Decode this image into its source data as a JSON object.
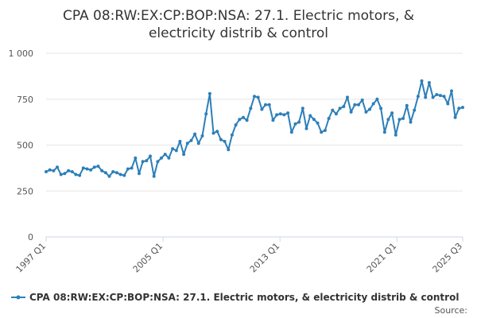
{
  "chart_data": {
    "type": "line",
    "title_lines": [
      "CPA 08:RW:EX:CP:BOP:NSA: 27.1. Electric motors, &",
      "electricity distrib & control"
    ],
    "x_tick_labels": [
      "1997 Q1",
      "2005 Q1",
      "2013 Q1",
      "2021 Q1",
      "2025 Q3"
    ],
    "y_tick_labels": [
      "0",
      "250",
      "500",
      "750",
      "1 000"
    ],
    "ylim": [
      0,
      1000
    ],
    "x_start": "1997 Q1",
    "x_end": "2025 Q3",
    "grid": "horizontal",
    "legend_position": "bottom",
    "color": "#2d7fb8",
    "series": [
      {
        "name": "CPA 08:RW:EX:CP:BOP:NSA: 27.1. Electric motors, & electricity distrib & control",
        "values": [
          355,
          365,
          360,
          380,
          340,
          345,
          360,
          355,
          340,
          335,
          375,
          370,
          365,
          380,
          385,
          360,
          350,
          330,
          355,
          350,
          340,
          335,
          370,
          375,
          430,
          345,
          410,
          415,
          440,
          330,
          410,
          430,
          450,
          430,
          480,
          470,
          520,
          450,
          510,
          525,
          560,
          510,
          550,
          670,
          780,
          565,
          575,
          530,
          520,
          475,
          555,
          610,
          640,
          650,
          635,
          700,
          765,
          760,
          695,
          720,
          720,
          635,
          665,
          670,
          665,
          675,
          570,
          615,
          625,
          700,
          590,
          660,
          640,
          620,
          570,
          580,
          645,
          690,
          670,
          700,
          710,
          760,
          680,
          720,
          720,
          745,
          680,
          695,
          725,
          750,
          700,
          570,
          640,
          675,
          555,
          640,
          645,
          715,
          625,
          690,
          765,
          850,
          760,
          840,
          760,
          775,
          770,
          765,
          725,
          795,
          650,
          700,
          705
        ]
      }
    ]
  },
  "legend": {
    "label": "CPA 08:RW:EX:CP:BOP:NSA: 27.1. Electric motors, & electricity distrib & control"
  },
  "footer": {
    "source": "Source:"
  }
}
